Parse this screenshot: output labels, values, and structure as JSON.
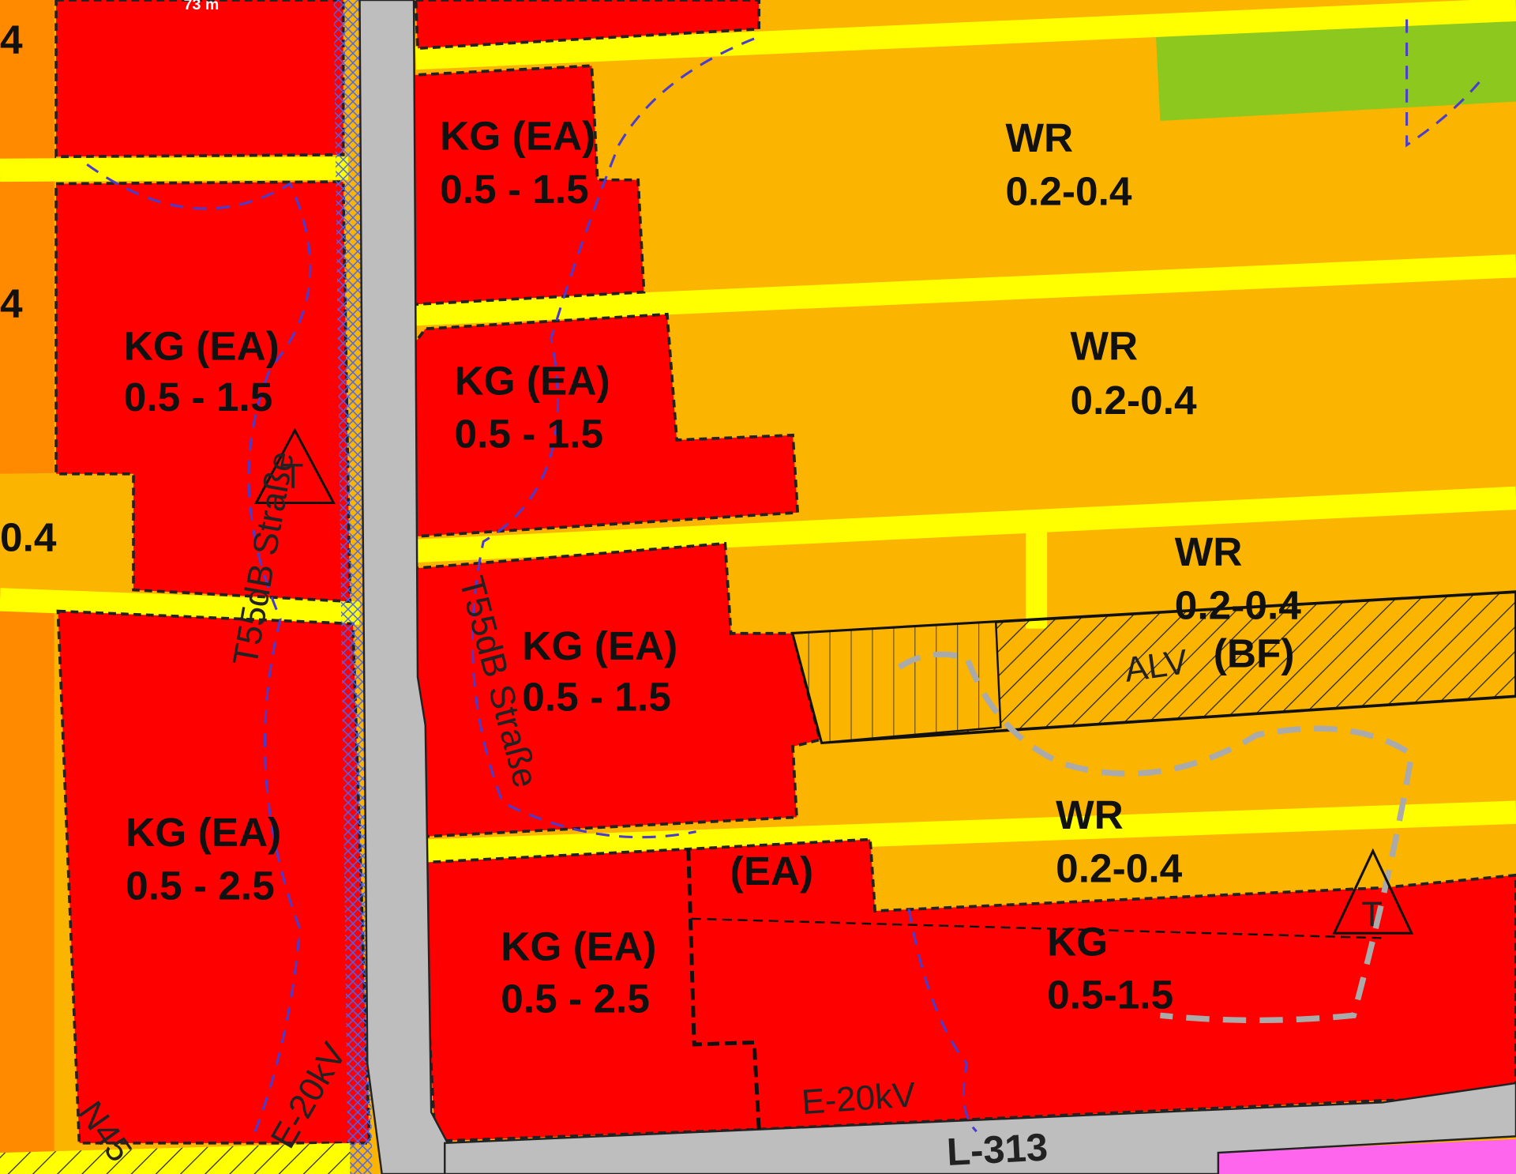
{
  "scale_label": "73 m",
  "edge_labels": [
    "4",
    "4",
    "0.4"
  ],
  "zones": [
    {
      "code": "KG (EA)",
      "density": "0.5 - 1.5"
    },
    {
      "code": "KG (EA)",
      "density": "0.5 - 1.5"
    },
    {
      "code": "KG (EA)",
      "density": "0.5 - 1.5"
    },
    {
      "code": "KG (EA)",
      "density": "0.5 - 1.5"
    },
    {
      "code": "KG (EA)",
      "density": "0.5 - 2.5"
    },
    {
      "code": "KG (EA)",
      "density": "0.5 - 2.5"
    },
    {
      "code": "WR",
      "density": "0.2-0.4"
    },
    {
      "code": "WR",
      "density": "0.2-0.4"
    },
    {
      "code": "WR",
      "density": "0.2-0.4"
    },
    {
      "code": "WR",
      "density": "0.2-0.4"
    },
    {
      "code": "KG",
      "density": "0.5-1.5"
    }
  ],
  "small_zone": "(EA)",
  "special": {
    "code": "ALV",
    "note": "(BF)"
  },
  "annotations": {
    "noise_1": "T55dB Straße",
    "noise_2": "T55dB Straße",
    "power_1": "E-20kV",
    "power_2": "E-20kV",
    "road": "L-313",
    "symbol_1": "T",
    "symbol_2": "T",
    "road_edge": "N45"
  }
}
